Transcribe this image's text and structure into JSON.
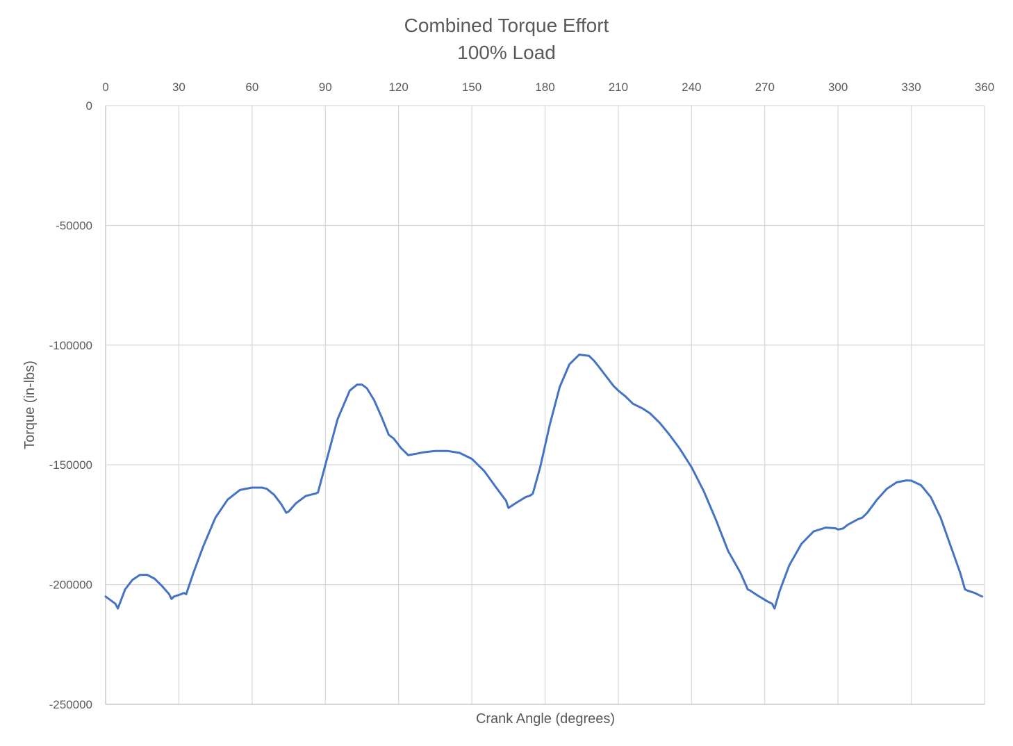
{
  "chart_data": {
    "type": "line",
    "title": [
      "Combined Torque Effort",
      "100% Load"
    ],
    "xlabel": "Crank Angle (degrees)",
    "ylabel": "Torque (in-lbs)",
    "xlim": [
      0,
      360
    ],
    "ylim": [
      -250000,
      0
    ],
    "x_ticks": [
      "0",
      "30",
      "60",
      "90",
      "120",
      "150",
      "180",
      "210",
      "240",
      "270",
      "300",
      "330",
      "360"
    ],
    "y_ticks": [
      "0",
      "-50000",
      "-100000",
      "-150000",
      "-200000",
      "-250000"
    ],
    "x_axis_position": "top",
    "grid": true,
    "legend": "none",
    "series": [
      {
        "color": "#4472c4",
        "x": [
          0,
          4,
          5,
          8,
          11,
          14,
          17,
          20,
          23,
          26,
          27,
          28,
          31,
          32,
          33,
          36,
          40,
          45,
          50,
          55,
          60,
          64,
          66,
          69,
          72,
          74,
          75,
          78,
          82,
          86,
          87,
          90,
          95,
          100,
          103,
          105,
          107,
          110,
          113,
          116,
          118,
          121,
          124,
          130,
          135,
          140,
          145,
          150,
          155,
          160,
          164,
          165,
          168,
          172,
          174,
          175,
          178,
          182,
          186,
          190,
          194,
          198,
          200,
          202,
          205,
          208,
          210,
          213,
          216,
          219,
          220,
          223,
          227,
          231,
          235,
          240,
          245,
          250,
          255,
          260,
          263,
          264,
          267,
          271,
          273,
          274,
          276,
          280,
          285,
          290,
          295,
          299,
          300,
          302,
          304,
          308,
          310,
          312,
          316,
          320,
          324,
          328,
          330,
          334,
          338,
          342,
          346,
          350,
          352,
          353,
          356,
          359
        ],
        "y": [
          -205000,
          -208000,
          -210000,
          -202000,
          -198000,
          -196000,
          -195900,
          -197500,
          -200500,
          -204000,
          -206000,
          -205000,
          -204000,
          -203500,
          -204000,
          -195000,
          -184000,
          -172000,
          -164500,
          -160500,
          -159500,
          -159500,
          -160000,
          -162500,
          -166500,
          -170000,
          -169500,
          -166000,
          -163000,
          -162000,
          -161500,
          -150000,
          -131000,
          -119000,
          -116500,
          -116500,
          -118000,
          -123000,
          -130000,
          -137500,
          -139000,
          -143000,
          -146000,
          -144800,
          -144200,
          -144200,
          -145000,
          -147500,
          -152500,
          -159500,
          -165000,
          -168000,
          -166000,
          -163500,
          -162800,
          -162000,
          -151000,
          -133000,
          -117500,
          -108000,
          -104000,
          -104500,
          -106500,
          -109000,
          -113000,
          -117000,
          -119000,
          -121500,
          -124500,
          -126000,
          -126500,
          -128500,
          -132500,
          -137500,
          -143000,
          -151000,
          -161000,
          -173000,
          -186000,
          -195000,
          -202000,
          -202500,
          -204500,
          -207000,
          -208000,
          -210000,
          -203000,
          -192000,
          -183000,
          -177800,
          -176200,
          -176500,
          -177000,
          -176600,
          -175000,
          -172800,
          -172000,
          -170000,
          -164500,
          -160000,
          -157300,
          -156500,
          -156600,
          -158500,
          -163500,
          -172000,
          -183500,
          -195000,
          -202000,
          -202500,
          -203500,
          -205000
        ]
      }
    ]
  }
}
